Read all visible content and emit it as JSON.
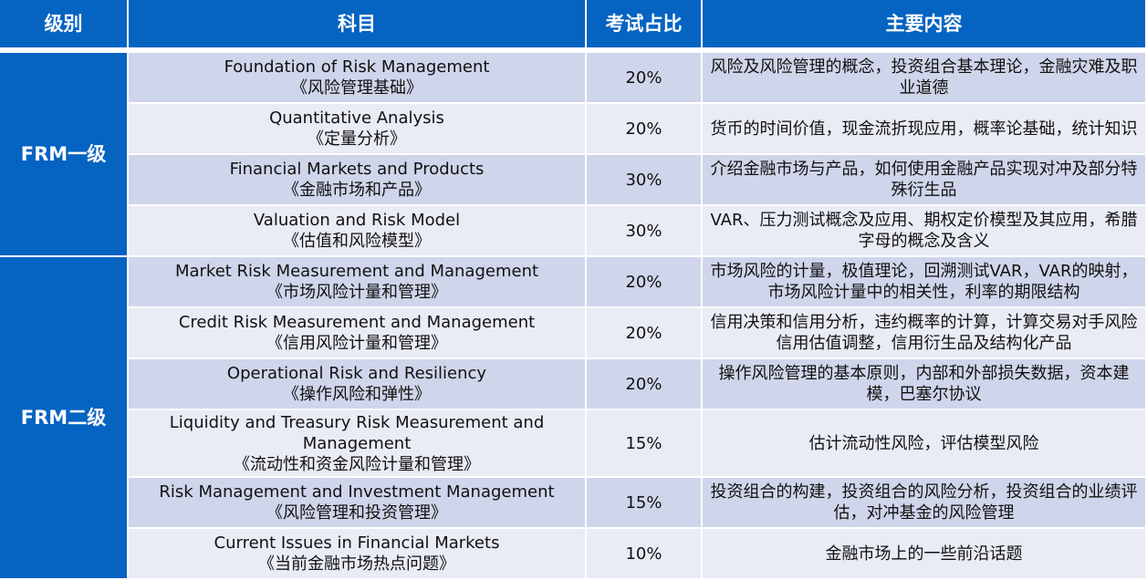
{
  "colors": {
    "header": "#0563C1",
    "row_dark": "#CFD5EA",
    "row_light": "#E9EBF5"
  },
  "headers": [
    "级别",
    "科目",
    "考试占比",
    "主要内容"
  ],
  "groups": [
    {
      "level": "FRM一级",
      "rows": [
        {
          "en": "Foundation of Risk Management",
          "cn": "《风险管理基础》",
          "pct": "20%",
          "content": "风险及风险管理的概念，投资组合基本理论，金融灾难及职业道德"
        },
        {
          "en": "Quantitative Analysis",
          "cn": "《定量分析》",
          "pct": "20%",
          "content": "货币的时间价值，现金流折现应用，概率论基础，统计知识"
        },
        {
          "en": "Financial Markets and Products",
          "cn": "《金融市场和产品》",
          "pct": "30%",
          "content": "介绍金融市场与产品，如何使用金融产品实现对冲及部分特殊衍生品"
        },
        {
          "en": "Valuation and Risk Model",
          "cn": "《估值和风险模型》",
          "pct": "30%",
          "content": "VAR、压力测试概念及应用、期权定价模型及其应用，希腊字母的概念及含义"
        }
      ]
    },
    {
      "level": "FRM二级",
      "rows": [
        {
          "en": "Market Risk Measurement and Management",
          "cn": "《市场风险计量和管理》",
          "pct": "20%",
          "content": "市场风险的计量，极值理论，回溯测试VAR，VAR的映射，市场风险计量中的相关性，利率的期限结构"
        },
        {
          "en": "Credit Risk Measurement and Management",
          "cn": "《信用风险计量和管理》",
          "pct": "20%",
          "content": "信用决策和信用分析，违约概率的计算，计算交易对手风险信用估值调整，信用衍生品及结构化产品"
        },
        {
          "en": "Operational Risk and Resiliency",
          "cn": "《操作风险和弹性》",
          "pct": "20%",
          "content": "操作风险管理的基本原则，内部和外部损失数据，资本建模，巴塞尔协议"
        },
        {
          "en": "Liquidity and Treasury Risk Measurement and Management",
          "cn": "《流动性和资金风险计量和管理》",
          "pct": "15%",
          "content": "估计流动性风险，评估模型风险"
        },
        {
          "en": "Risk Management and Investment Management",
          "cn": "《风险管理和投资管理》",
          "pct": "15%",
          "content": "投资组合的构建，投资组合的风险分析，投资组合的业绩评估，对冲基金的风险管理"
        },
        {
          "en": "Current Issues in Financial Markets",
          "cn": "《当前金融市场热点问题》",
          "pct": "10%",
          "content": "金融市场上的一些前沿话题"
        }
      ]
    }
  ]
}
